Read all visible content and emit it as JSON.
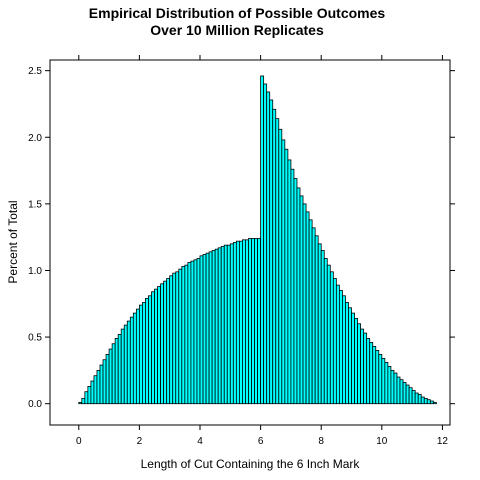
{
  "chart_data": {
    "type": "bar",
    "title_line1": "Empirical Distribution of Possible Outcomes",
    "title_line2": "Over 10 Million Replicates",
    "xlabel": "Length of Cut Containing the 6 Inch Mark",
    "ylabel": "Percent of Total",
    "xlim": [
      -0.95,
      12.25
    ],
    "ylim": [
      -0.16,
      2.58
    ],
    "x_ticks": [
      0,
      2,
      4,
      6,
      8,
      10,
      12
    ],
    "y_ticks": [
      0.0,
      0.5,
      1.0,
      1.5,
      2.0,
      2.5
    ],
    "y_tick_labels": [
      "0.0",
      "0.5",
      "1.0",
      "1.5",
      "2.0",
      "2.5"
    ],
    "bin_width": 0.1,
    "bin_start": 0,
    "bar_fill": "#00FFFF",
    "values": [
      0.01,
      0.04,
      0.09,
      0.13,
      0.17,
      0.21,
      0.25,
      0.29,
      0.33,
      0.37,
      0.41,
      0.45,
      0.49,
      0.52,
      0.56,
      0.59,
      0.62,
      0.65,
      0.68,
      0.71,
      0.74,
      0.76,
      0.79,
      0.81,
      0.84,
      0.86,
      0.88,
      0.9,
      0.92,
      0.94,
      0.96,
      0.98,
      0.99,
      1.01,
      1.03,
      1.04,
      1.06,
      1.07,
      1.08,
      1.09,
      1.11,
      1.12,
      1.13,
      1.14,
      1.15,
      1.16,
      1.17,
      1.18,
      1.19,
      1.19,
      1.2,
      1.21,
      1.22,
      1.22,
      1.23,
      1.23,
      1.24,
      1.24,
      1.24,
      1.24,
      2.46,
      2.4,
      2.34,
      2.28,
      2.21,
      2.14,
      2.06,
      1.98,
      1.91,
      1.83,
      1.76,
      1.69,
      1.62,
      1.56,
      1.5,
      1.44,
      1.38,
      1.32,
      1.26,
      1.2,
      1.15,
      1.09,
      1.04,
      0.99,
      0.94,
      0.89,
      0.85,
      0.81,
      0.76,
      0.72,
      0.68,
      0.64,
      0.6,
      0.56,
      0.53,
      0.49,
      0.46,
      0.43,
      0.4,
      0.37,
      0.34,
      0.31,
      0.28,
      0.25,
      0.23,
      0.2,
      0.18,
      0.16,
      0.14,
      0.12,
      0.1,
      0.08,
      0.07,
      0.05,
      0.04,
      0.03,
      0.02,
      0.01
    ]
  }
}
